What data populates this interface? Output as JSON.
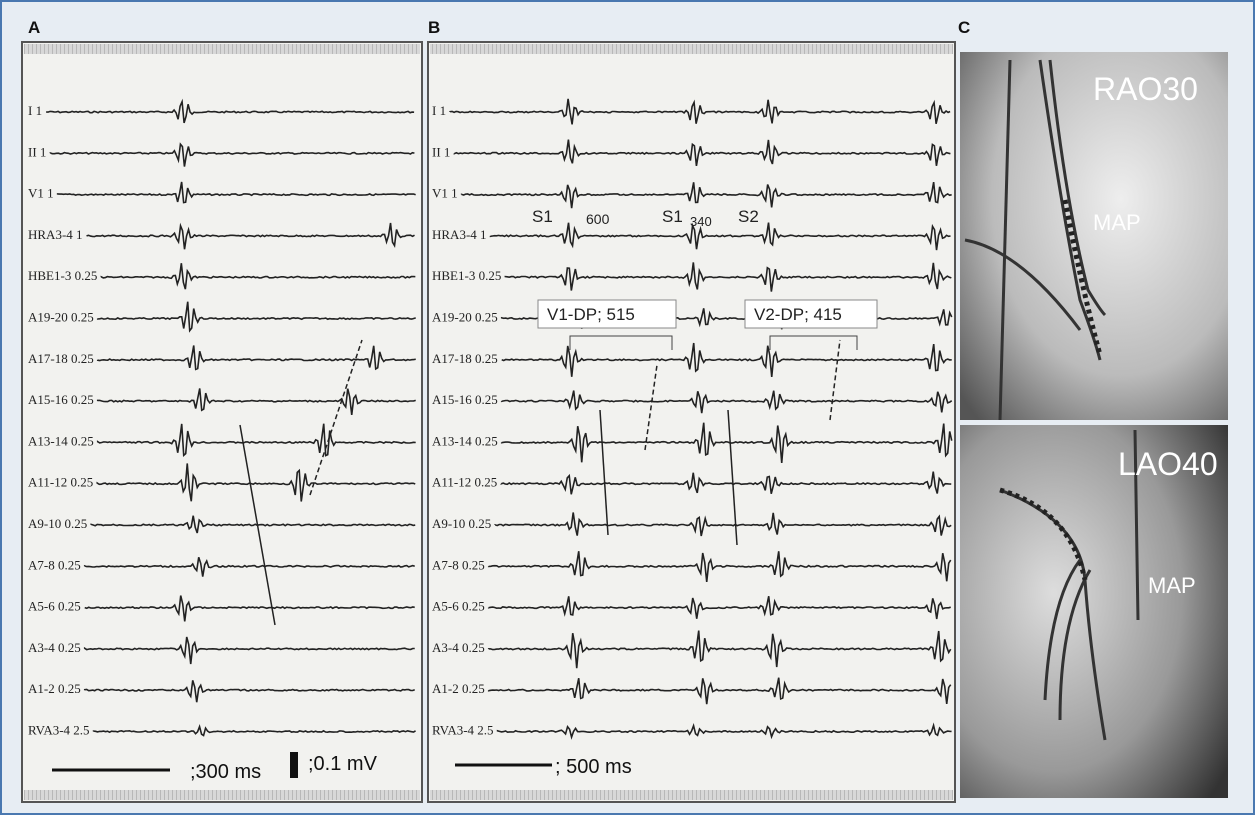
{
  "panels": {
    "a": {
      "label": "A",
      "channels": [
        "I  1",
        "II  1",
        "V1  1",
        "HRA3-4  1",
        "HBE1-3  0.25",
        "A19-20  0.25",
        "A17-18  0.25",
        "A15-16  0.25",
        "A13-14  0.25",
        "A11-12  0.25",
        "A9-10  0.25",
        "A7-8  0.25",
        "A5-6  0.25",
        "A3-4  0.25",
        "A1-2  0.25",
        "RVA3-4  2.5"
      ],
      "scale_time": ";300 ms",
      "scale_amp": ";0.1 mV"
    },
    "b": {
      "label": "B",
      "channels": [
        "I  1",
        "II  1",
        "V1  1",
        "HRA3-4  1",
        "HBE1-3  0.25",
        "A19-20  0.25",
        "A17-18  0.25",
        "A15-16  0.25",
        "A13-14  0.25",
        "A11-12  0.25",
        "A9-10  0.25",
        "A7-8  0.25",
        "A5-6  0.25",
        "A3-4  0.25",
        "A1-2  0.25",
        "RVA3-4  2.5"
      ],
      "annotations": [
        "S1",
        "600",
        "S1",
        "340",
        "S2"
      ],
      "boxes": [
        "V1-DP; 515",
        "V2-DP; 415"
      ],
      "scale_time": "; 500 ms"
    },
    "c": {
      "label": "C",
      "views": [
        {
          "title": "RAO30",
          "tag": "MAP"
        },
        {
          "title": "LAO40",
          "tag": "MAP"
        }
      ]
    }
  }
}
